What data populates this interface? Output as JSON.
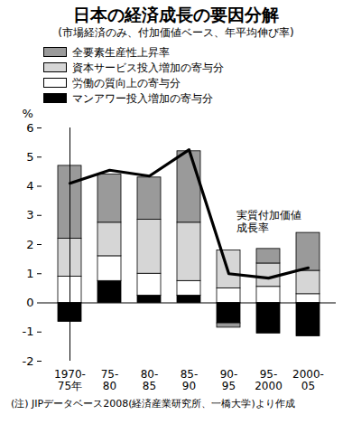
{
  "chart_data": {
    "type": "bar",
    "stacked": true,
    "title": "日本の経済成長の要因分解",
    "subtitle": "(市場経済のみ、付加価値ベース、年平均伸び率)",
    "note": "(注) JIPデータベース2008(経済産業研究所、一橋大学)より作成",
    "y_label": "%",
    "categories": [
      "1970-\n75年",
      "75-\n80",
      "80-\n85",
      "85-\n90",
      "90-\n95",
      "95-\n2000",
      "2000-\n05"
    ],
    "series": [
      {
        "name": "マンアワー投入増加の寄与分",
        "color": "#000000",
        "values": [
          -0.65,
          0.75,
          0.25,
          0.25,
          -0.7,
          -1.05,
          -1.15
        ]
      },
      {
        "name": "労働の質向上の寄与分",
        "color": "#ffffff",
        "values": [
          0.9,
          0.85,
          0.75,
          0.5,
          0.5,
          0.55,
          0.3
        ]
      },
      {
        "name": "資本サービス投入増加の寄与分",
        "color": "#d6d6d6",
        "values": [
          1.3,
          1.15,
          1.85,
          2.0,
          1.3,
          0.8,
          0.8
        ]
      },
      {
        "name": "全要素生産性上昇率",
        "color": "#9a9a9a",
        "values": [
          2.5,
          1.65,
          1.45,
          2.45,
          -0.15,
          0.5,
          1.3
        ]
      },
      {
        "name": "実質付加価値\n成長率",
        "type": "line",
        "color": "#000000",
        "values": [
          4.1,
          4.55,
          4.35,
          5.25,
          1.0,
          0.85,
          1.2
        ]
      }
    ],
    "ylim": [
      -2,
      6
    ],
    "yticks": [
      -2,
      -1,
      0,
      1,
      2,
      3,
      4,
      5,
      6
    ],
    "grid": false,
    "legend": "top-left"
  }
}
